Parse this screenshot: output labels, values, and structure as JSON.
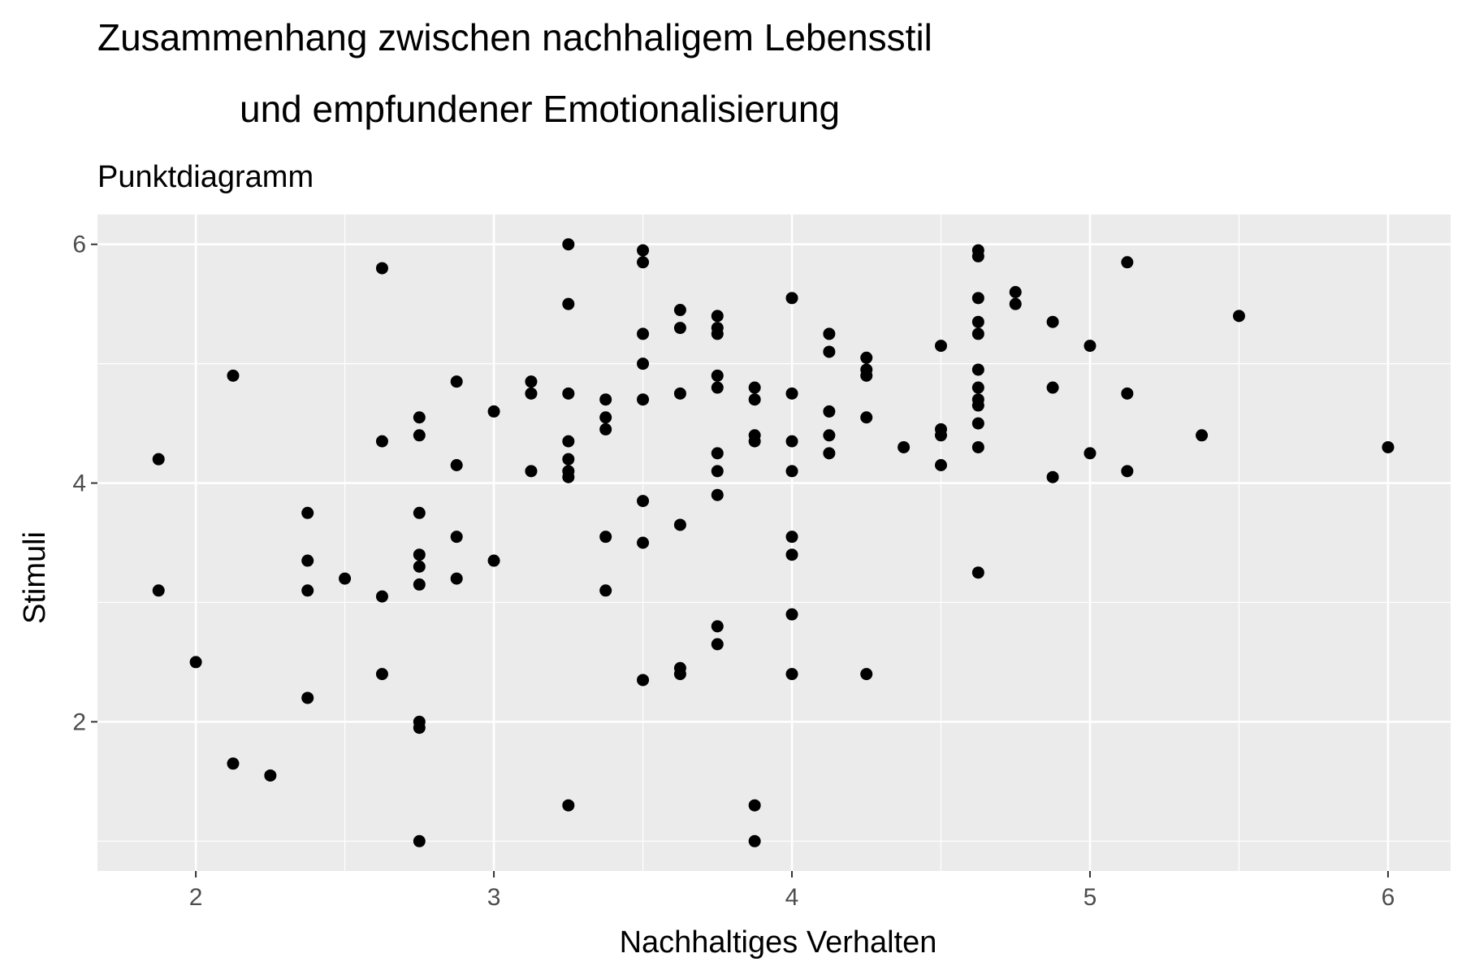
{
  "chart_data": {
    "type": "scatter",
    "title_lines": [
      "Zusammenhang zwischen nachhaligem Lebensstil",
      "und empfundener Emotionalisierung"
    ],
    "subtitle": "Punktdiagramm",
    "xlabel": "Nachhaltiges Verhalten",
    "ylabel": "Stimuli",
    "xlim": [
      1.67,
      6.21
    ],
    "ylim": [
      0.75,
      6.25
    ],
    "x_ticks": [
      2,
      3,
      4,
      5,
      6
    ],
    "y_ticks": [
      2,
      4,
      6
    ],
    "x_tick_labels": [
      "2",
      "3",
      "4",
      "5",
      "6"
    ],
    "y_tick_labels": [
      "2",
      "4",
      "6"
    ],
    "grid": true,
    "colors": {
      "panel": "#EBEBEB",
      "grid": "#FFFFFF",
      "point": "#000000",
      "tick": "#4D4D4D"
    },
    "points": [
      [
        1.875,
        4.2
      ],
      [
        1.875,
        3.1
      ],
      [
        2.0,
        2.5
      ],
      [
        2.125,
        4.9
      ],
      [
        2.125,
        1.65
      ],
      [
        2.25,
        1.55
      ],
      [
        2.375,
        3.75
      ],
      [
        2.375,
        3.35
      ],
      [
        2.375,
        3.1
      ],
      [
        2.375,
        2.2
      ],
      [
        2.5,
        3.2
      ],
      [
        2.625,
        5.8
      ],
      [
        2.625,
        4.35
      ],
      [
        2.625,
        3.05
      ],
      [
        2.625,
        2.4
      ],
      [
        2.75,
        4.55
      ],
      [
        2.75,
        4.4
      ],
      [
        2.75,
        3.75
      ],
      [
        2.75,
        3.4
      ],
      [
        2.75,
        3.3
      ],
      [
        2.75,
        3.15
      ],
      [
        2.75,
        2.0
      ],
      [
        2.75,
        1.95
      ],
      [
        2.75,
        1.0
      ],
      [
        2.875,
        4.85
      ],
      [
        2.875,
        4.15
      ],
      [
        2.875,
        3.55
      ],
      [
        2.875,
        3.2
      ],
      [
        3.0,
        4.6
      ],
      [
        3.0,
        3.35
      ],
      [
        3.125,
        4.85
      ],
      [
        3.125,
        4.75
      ],
      [
        3.125,
        4.1
      ],
      [
        3.25,
        6.0
      ],
      [
        3.25,
        5.5
      ],
      [
        3.25,
        4.75
      ],
      [
        3.25,
        4.35
      ],
      [
        3.25,
        4.2
      ],
      [
        3.25,
        4.1
      ],
      [
        3.25,
        4.05
      ],
      [
        3.25,
        1.3
      ],
      [
        3.375,
        4.7
      ],
      [
        3.375,
        4.55
      ],
      [
        3.375,
        4.45
      ],
      [
        3.375,
        3.55
      ],
      [
        3.375,
        3.1
      ],
      [
        3.5,
        5.95
      ],
      [
        3.5,
        5.85
      ],
      [
        3.5,
        5.25
      ],
      [
        3.5,
        5.0
      ],
      [
        3.5,
        4.7
      ],
      [
        3.5,
        3.85
      ],
      [
        3.5,
        3.5
      ],
      [
        3.5,
        2.35
      ],
      [
        3.625,
        5.45
      ],
      [
        3.625,
        5.3
      ],
      [
        3.625,
        4.75
      ],
      [
        3.625,
        3.65
      ],
      [
        3.625,
        2.45
      ],
      [
        3.625,
        2.4
      ],
      [
        3.75,
        5.4
      ],
      [
        3.75,
        5.3
      ],
      [
        3.75,
        5.25
      ],
      [
        3.75,
        4.9
      ],
      [
        3.75,
        4.8
      ],
      [
        3.75,
        4.25
      ],
      [
        3.75,
        4.1
      ],
      [
        3.75,
        3.9
      ],
      [
        3.75,
        2.8
      ],
      [
        3.75,
        2.65
      ],
      [
        3.875,
        4.8
      ],
      [
        3.875,
        4.7
      ],
      [
        3.875,
        4.4
      ],
      [
        3.875,
        4.35
      ],
      [
        3.875,
        1.3
      ],
      [
        3.875,
        1.0
      ],
      [
        4.0,
        5.55
      ],
      [
        4.0,
        4.75
      ],
      [
        4.0,
        4.35
      ],
      [
        4.0,
        4.1
      ],
      [
        4.0,
        3.55
      ],
      [
        4.0,
        3.4
      ],
      [
        4.0,
        2.9
      ],
      [
        4.0,
        2.4
      ],
      [
        4.125,
        5.25
      ],
      [
        4.125,
        5.1
      ],
      [
        4.125,
        4.6
      ],
      [
        4.125,
        4.4
      ],
      [
        4.125,
        4.25
      ],
      [
        4.25,
        5.05
      ],
      [
        4.25,
        4.95
      ],
      [
        4.25,
        4.9
      ],
      [
        4.25,
        4.55
      ],
      [
        4.25,
        2.4
      ],
      [
        4.375,
        4.3
      ],
      [
        4.5,
        5.15
      ],
      [
        4.5,
        4.45
      ],
      [
        4.5,
        4.4
      ],
      [
        4.5,
        4.15
      ],
      [
        4.625,
        5.95
      ],
      [
        4.625,
        5.9
      ],
      [
        4.625,
        5.55
      ],
      [
        4.625,
        5.35
      ],
      [
        4.625,
        5.25
      ],
      [
        4.625,
        4.95
      ],
      [
        4.625,
        4.8
      ],
      [
        4.625,
        4.7
      ],
      [
        4.625,
        4.65
      ],
      [
        4.625,
        4.5
      ],
      [
        4.625,
        4.3
      ],
      [
        4.625,
        3.25
      ],
      [
        4.75,
        5.6
      ],
      [
        4.75,
        5.5
      ],
      [
        4.875,
        5.35
      ],
      [
        4.875,
        4.8
      ],
      [
        4.875,
        4.05
      ],
      [
        5.0,
        5.15
      ],
      [
        5.0,
        4.25
      ],
      [
        5.125,
        5.85
      ],
      [
        5.125,
        4.75
      ],
      [
        5.125,
        4.1
      ],
      [
        5.375,
        4.4
      ],
      [
        5.5,
        5.4
      ],
      [
        6.0,
        4.3
      ]
    ]
  }
}
